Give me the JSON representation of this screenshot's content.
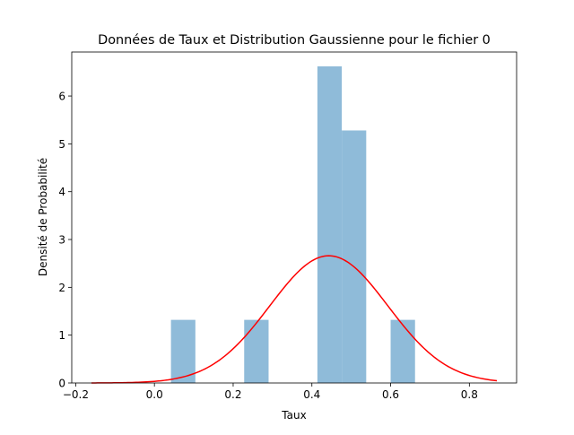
{
  "chart_data": {
    "type": "bar",
    "title": "Données de Taux et Distribution Gaussienne pour le fichier 0",
    "xlabel": "Taux",
    "ylabel": "Densité de Probabilité",
    "xlim": [
      -0.21,
      0.92
    ],
    "ylim": [
      0,
      6.92
    ],
    "x_ticks": [
      -0.2,
      0.0,
      0.2,
      0.4,
      0.6,
      0.8
    ],
    "x_tick_labels": [
      "−0.2",
      "0.0",
      "0.2",
      "0.4",
      "0.6",
      "0.8"
    ],
    "y_ticks": [
      0,
      1,
      2,
      3,
      4,
      5,
      6
    ],
    "y_tick_labels": [
      "0",
      "1",
      "2",
      "3",
      "4",
      "5",
      "6"
    ],
    "grid": false,
    "legend": "none",
    "histogram": {
      "bin_edges": [
        0.042,
        0.104,
        0.166,
        0.228,
        0.29,
        0.352,
        0.414,
        0.476,
        0.538,
        0.6,
        0.662
      ],
      "density": [
        1.32,
        0,
        0,
        1.32,
        0,
        0,
        6.62,
        5.28,
        0,
        1.32
      ],
      "color": "#8fbbd9"
    },
    "gaussian": {
      "mean": 0.443,
      "std": 0.15,
      "x_range": [
        -0.16,
        0.87
      ],
      "color": "#ff0000"
    }
  }
}
